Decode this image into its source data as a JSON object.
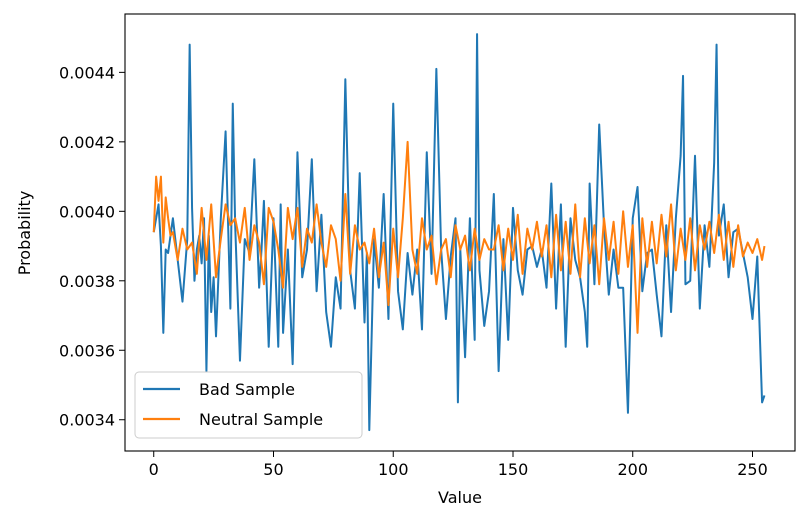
{
  "chart_data": {
    "type": "line",
    "xlabel": "Value",
    "ylabel": "Probability",
    "xlim": [
      -12,
      267.75
    ],
    "ylim": [
      0.00331,
      0.004568
    ],
    "xticks": [
      0,
      50,
      100,
      150,
      200,
      250
    ],
    "xtick_labels": [
      "0",
      "50",
      "100",
      "150",
      "200",
      "250"
    ],
    "yticks": [
      0.0034,
      0.0036,
      0.0038,
      0.004,
      0.0042,
      0.0044
    ],
    "ytick_labels": [
      "0.0034",
      "0.0036",
      "0.0038",
      "0.0040",
      "0.0042",
      "0.0044"
    ],
    "grid": false,
    "legend_position": "lower-left",
    "series": [
      {
        "name": "Bad Sample",
        "color": "#1f77b4",
        "x": [
          0,
          2,
          3,
          4,
          5,
          6,
          8,
          10,
          12,
          14,
          15,
          16,
          17,
          18,
          19,
          20,
          21,
          22,
          23,
          24,
          25,
          26,
          28,
          30,
          32,
          33,
          34,
          36,
          38,
          40,
          42,
          44,
          45,
          46,
          48,
          50,
          52,
          53,
          54,
          56,
          58,
          60,
          62,
          64,
          66,
          68,
          70,
          72,
          74,
          76,
          78,
          80,
          82,
          84,
          86,
          88,
          89,
          90,
          92,
          94,
          96,
          98,
          100,
          102,
          104,
          106,
          108,
          110,
          112,
          114,
          116,
          118,
          120,
          122,
          124,
          126,
          127,
          128,
          130,
          132,
          134,
          135,
          136,
          138,
          140,
          142,
          144,
          146,
          148,
          150,
          152,
          154,
          156,
          158,
          160,
          162,
          164,
          166,
          168,
          170,
          172,
          174,
          176,
          178,
          180,
          181,
          182,
          184,
          186,
          188,
          190,
          192,
          194,
          196,
          198,
          200,
          202,
          204,
          206,
          208,
          210,
          212,
          214,
          216,
          218,
          220,
          221,
          222,
          224,
          226,
          228,
          230,
          232,
          234,
          235,
          236,
          238,
          240,
          242,
          244,
          246,
          248,
          250,
          252,
          254,
          255
        ],
        "values": [
          0.00394,
          0.00402,
          0.0039,
          0.00365,
          0.00389,
          0.00388,
          0.00398,
          0.00386,
          0.00374,
          0.00392,
          0.00448,
          0.00401,
          0.0038,
          0.00389,
          0.00393,
          0.00385,
          0.00398,
          0.00354,
          0.00393,
          0.00371,
          0.00381,
          0.00364,
          0.00398,
          0.00423,
          0.00372,
          0.00431,
          0.00396,
          0.00357,
          0.00392,
          0.00388,
          0.00415,
          0.00378,
          0.00389,
          0.00403,
          0.00361,
          0.00398,
          0.00361,
          0.00402,
          0.00365,
          0.00389,
          0.00356,
          0.00417,
          0.00381,
          0.00389,
          0.00415,
          0.00377,
          0.00399,
          0.00371,
          0.00361,
          0.00381,
          0.00372,
          0.00438,
          0.00383,
          0.00372,
          0.00411,
          0.00368,
          0.00388,
          0.00337,
          0.00392,
          0.00378,
          0.00405,
          0.00369,
          0.00431,
          0.00377,
          0.00366,
          0.00388,
          0.00376,
          0.00389,
          0.00366,
          0.00417,
          0.00382,
          0.00441,
          0.00389,
          0.00369,
          0.00387,
          0.00398,
          0.00345,
          0.00389,
          0.00358,
          0.00398,
          0.00363,
          0.00451,
          0.00383,
          0.00367,
          0.00377,
          0.00405,
          0.00354,
          0.00392,
          0.00363,
          0.00401,
          0.00383,
          0.00376,
          0.00389,
          0.0039,
          0.00384,
          0.00389,
          0.00378,
          0.00408,
          0.00372,
          0.00402,
          0.00361,
          0.00398,
          0.00386,
          0.00381,
          0.00371,
          0.00361,
          0.00408,
          0.00379,
          0.00425,
          0.00396,
          0.00376,
          0.00389,
          0.00378,
          0.00378,
          0.00342,
          0.00398,
          0.00407,
          0.00377,
          0.00388,
          0.00389,
          0.00376,
          0.00364,
          0.00396,
          0.00371,
          0.00398,
          0.00416,
          0.00439,
          0.00379,
          0.0038,
          0.00416,
          0.00372,
          0.00396,
          0.00384,
          0.00414,
          0.00448,
          0.00393,
          0.00402,
          0.00381,
          0.00394,
          0.00395,
          0.00388,
          0.00381,
          0.00369,
          0.00387,
          0.00345,
          0.00347
        ]
      },
      {
        "name": "Neutral Sample",
        "color": "#ff7f0e",
        "x": [
          0,
          1,
          2,
          3,
          4,
          5,
          6,
          7,
          8,
          10,
          12,
          14,
          16,
          18,
          20,
          22,
          24,
          26,
          28,
          30,
          32,
          34,
          36,
          38,
          40,
          42,
          44,
          46,
          48,
          50,
          52,
          54,
          56,
          58,
          60,
          62,
          64,
          66,
          68,
          70,
          72,
          74,
          76,
          78,
          80,
          82,
          84,
          86,
          88,
          90,
          92,
          94,
          96,
          98,
          100,
          102,
          104,
          106,
          108,
          110,
          112,
          114,
          116,
          118,
          120,
          122,
          124,
          126,
          128,
          130,
          132,
          134,
          136,
          138,
          140,
          142,
          144,
          146,
          148,
          150,
          152,
          154,
          156,
          158,
          160,
          162,
          164,
          166,
          168,
          170,
          172,
          174,
          176,
          178,
          180,
          182,
          184,
          186,
          188,
          190,
          192,
          194,
          196,
          198,
          200,
          202,
          204,
          206,
          208,
          210,
          212,
          214,
          216,
          218,
          220,
          222,
          224,
          226,
          228,
          230,
          232,
          234,
          236,
          238,
          240,
          242,
          244,
          246,
          248,
          250,
          252,
          254,
          255
        ],
        "values": [
          0.00394,
          0.0041,
          0.00403,
          0.0041,
          0.00391,
          0.00404,
          0.00398,
          0.00393,
          0.00394,
          0.00386,
          0.00395,
          0.00389,
          0.00391,
          0.00382,
          0.00401,
          0.00386,
          0.00402,
          0.00381,
          0.00392,
          0.00402,
          0.00396,
          0.00398,
          0.00391,
          0.00401,
          0.00386,
          0.00396,
          0.00391,
          0.00379,
          0.00401,
          0.00397,
          0.00389,
          0.00378,
          0.00401,
          0.00392,
          0.00401,
          0.00384,
          0.00395,
          0.00391,
          0.00402,
          0.00391,
          0.00384,
          0.00396,
          0.00392,
          0.0038,
          0.00405,
          0.00382,
          0.00396,
          0.00389,
          0.00391,
          0.00385,
          0.00395,
          0.00381,
          0.00391,
          0.00373,
          0.00395,
          0.00381,
          0.00398,
          0.0042,
          0.00389,
          0.00382,
          0.00398,
          0.00389,
          0.00393,
          0.00379,
          0.00389,
          0.00392,
          0.00381,
          0.00396,
          0.00389,
          0.00393,
          0.00383,
          0.00395,
          0.00386,
          0.00392,
          0.00389,
          0.00389,
          0.00396,
          0.00383,
          0.00395,
          0.00386,
          0.00399,
          0.00382,
          0.00395,
          0.00389,
          0.00397,
          0.00387,
          0.00396,
          0.00381,
          0.00399,
          0.00383,
          0.00397,
          0.00382,
          0.00402,
          0.00381,
          0.00398,
          0.00385,
          0.00396,
          0.00379,
          0.00398,
          0.00386,
          0.00397,
          0.00382,
          0.004,
          0.00384,
          0.00396,
          0.00365,
          0.00398,
          0.00384,
          0.00397,
          0.00385,
          0.00399,
          0.00387,
          0.00402,
          0.00383,
          0.00395,
          0.00386,
          0.00398,
          0.00383,
          0.00396,
          0.00389,
          0.00397,
          0.00388,
          0.00399,
          0.00386,
          0.00397,
          0.00384,
          0.00396,
          0.00387,
          0.00391,
          0.00388,
          0.00392,
          0.00386,
          0.0039
        ]
      }
    ]
  }
}
